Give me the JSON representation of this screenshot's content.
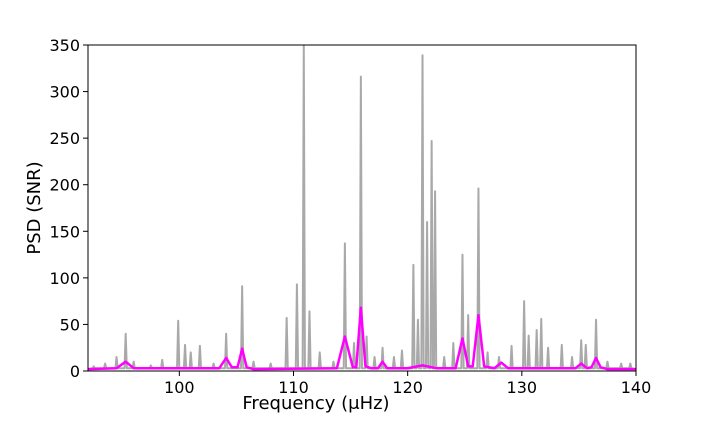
{
  "chart_data": {
    "type": "line",
    "xlabel": "Frequency (μHz)",
    "ylabel": "PSD (SNR)",
    "xlim": [
      92,
      140
    ],
    "ylim": [
      0,
      350
    ],
    "xticks": [
      100,
      110,
      120,
      130,
      140
    ],
    "yticks": [
      0,
      50,
      100,
      150,
      200,
      250,
      300,
      350
    ],
    "grid": false,
    "series": [
      {
        "color": "#8c8c8c",
        "opacity": 0.75,
        "width": 2,
        "x": [
          92,
          92.4,
          92.5,
          92.6,
          93.4,
          93.5,
          93.6,
          94.4,
          94.5,
          94.6,
          95.2,
          95.3,
          95.4,
          95.9,
          96.0,
          96.1,
          97.4,
          97.5,
          97.6,
          98.4,
          98.5,
          98.6,
          99.8,
          99.9,
          100.0,
          100.4,
          100.5,
          100.6,
          100.9,
          101.0,
          101.1,
          101.7,
          101.8,
          101.9,
          102.9,
          103.0,
          103.1,
          104.0,
          104.1,
          104.2,
          105.4,
          105.5,
          105.6,
          106.4,
          106.5,
          106.6,
          107.9,
          108.0,
          108.1,
          109.3,
          109.4,
          109.5,
          110.2,
          110.3,
          110.4,
          110.8,
          110.9,
          111.0,
          111.3,
          111.4,
          111.5,
          112.2,
          112.3,
          112.4,
          113.4,
          113.5,
          113.6,
          114.4,
          114.5,
          114.6,
          115.2,
          115.3,
          115.4,
          115.8,
          115.9,
          116.0,
          116.3,
          116.4,
          116.5,
          117.0,
          117.1,
          117.2,
          117.7,
          117.8,
          117.9,
          118.7,
          118.8,
          118.9,
          119.4,
          119.5,
          119.6,
          120.4,
          120.5,
          120.6,
          120.8,
          120.9,
          121.0,
          121.2,
          121.3,
          121.4,
          121.6,
          121.7,
          121.8,
          122.0,
          122.1,
          122.2,
          122.3,
          122.4,
          122.5,
          123.1,
          123.2,
          123.3,
          123.9,
          124.0,
          124.1,
          124.7,
          124.8,
          124.9,
          125.2,
          125.3,
          125.4,
          126.1,
          126.2,
          126.3,
          126.9,
          127.0,
          127.1,
          127.9,
          128.0,
          128.1,
          129.0,
          129.1,
          129.2,
          130.1,
          130.2,
          130.3,
          130.5,
          130.6,
          130.7,
          131.2,
          131.3,
          131.4,
          131.6,
          131.7,
          131.8,
          132.2,
          132.3,
          132.4,
          133.4,
          133.5,
          133.6,
          134.3,
          134.4,
          134.5,
          135.1,
          135.2,
          135.3,
          135.5,
          135.6,
          135.7,
          136.4,
          136.5,
          136.6,
          137.4,
          137.5,
          137.6,
          138.6,
          138.7,
          138.8,
          139.4,
          139.5,
          139.6,
          140
        ],
        "values": [
          2,
          3,
          5,
          3,
          3,
          8,
          3,
          3,
          15,
          3,
          3,
          40,
          3,
          3,
          10,
          3,
          3,
          6,
          3,
          3,
          12,
          3,
          3,
          54,
          3,
          3,
          28,
          3,
          3,
          20,
          3,
          3,
          27,
          3,
          3,
          8,
          3,
          3,
          40,
          3,
          3,
          91,
          3,
          3,
          10,
          3,
          3,
          8,
          3,
          3,
          57,
          3,
          3,
          93,
          3,
          3,
          350,
          3,
          3,
          64,
          3,
          3,
          20,
          3,
          3,
          10,
          3,
          3,
          137,
          3,
          3,
          30,
          3,
          3,
          316,
          3,
          3,
          37,
          3,
          3,
          15,
          3,
          3,
          25,
          3,
          3,
          15,
          3,
          3,
          22,
          3,
          3,
          114,
          3,
          3,
          55,
          3,
          3,
          339,
          3,
          3,
          160,
          3,
          3,
          247,
          3,
          3,
          193,
          3,
          3,
          15,
          3,
          3,
          30,
          3,
          3,
          125,
          3,
          3,
          60,
          3,
          3,
          196,
          3,
          3,
          20,
          3,
          3,
          15,
          3,
          3,
          27,
          3,
          3,
          75,
          3,
          3,
          38,
          3,
          3,
          44,
          3,
          3,
          56,
          3,
          3,
          25,
          3,
          3,
          28,
          3,
          3,
          15,
          3,
          3,
          33,
          3,
          3,
          28,
          3,
          3,
          55,
          3,
          3,
          10,
          3,
          3,
          8,
          3,
          3,
          8,
          3,
          2
        ]
      },
      {
        "color": "#ff00ff",
        "opacity": 1,
        "width": 2.5,
        "x": [
          92,
          94.5,
          95.3,
          96,
          103.5,
          104.1,
          104.6,
          105.1,
          105.5,
          105.9,
          106.5,
          113.8,
          114.5,
          115.2,
          115.5,
          115.9,
          116.3,
          116.8,
          117.4,
          117.8,
          118.2,
          120,
          121.3,
          122.5,
          124.2,
          124.8,
          125.3,
          125.7,
          126.2,
          126.7,
          127.6,
          128.2,
          128.8,
          134.7,
          135.2,
          135.7,
          136.1,
          136.5,
          136.9,
          137.5,
          140
        ],
        "values": [
          2,
          3,
          10,
          3,
          3,
          14,
          4,
          4,
          24,
          4,
          2,
          3,
          37,
          4,
          4,
          68,
          5,
          3,
          3,
          10,
          3,
          3,
          6,
          3,
          3,
          35,
          5,
          5,
          60,
          5,
          3,
          9,
          3,
          3,
          8,
          3,
          4,
          14,
          4,
          2,
          2
        ]
      }
    ]
  }
}
